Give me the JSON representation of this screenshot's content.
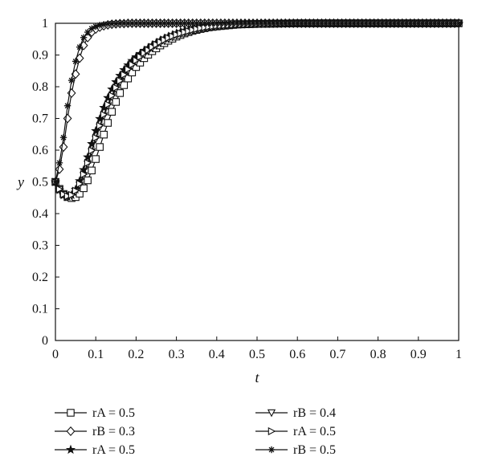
{
  "chart_data": {
    "type": "line",
    "xlabel": "t",
    "ylabel": "y",
    "xlim": [
      0,
      1
    ],
    "ylim": [
      0,
      1
    ],
    "x_ticks": [
      "0",
      "0.1",
      "0.2",
      "0.3",
      "0.4",
      "0.5",
      "0.6",
      "0.7",
      "0.8",
      "0.9",
      "1"
    ],
    "y_ticks": [
      "0",
      "0.1",
      "0.2",
      "0.3",
      "0.4",
      "0.5",
      "0.6",
      "0.7",
      "0.8",
      "0.9",
      "1"
    ],
    "grid": false,
    "legend_position": "bottom",
    "line_color": "#111111",
    "x": [
      0,
      0.01,
      0.02,
      0.03,
      0.04,
      0.05,
      0.06,
      0.07,
      0.08,
      0.09,
      0.1,
      0.11,
      0.12,
      0.13,
      0.14,
      0.15,
      0.16,
      0.17,
      0.18,
      0.19,
      0.2,
      0.22,
      0.24,
      0.26,
      0.28,
      0.3,
      0.32,
      0.34,
      0.36,
      0.38,
      0.4,
      0.45,
      0.5,
      0.55,
      0.6,
      0.65,
      0.7,
      0.75,
      0.8,
      0.85,
      0.9,
      0.95,
      1.0
    ],
    "series": [
      {
        "name": "rA = 0.5",
        "marker": "square",
        "values": [
          0.5,
          0.478,
          0.462,
          0.452,
          0.449,
          0.452,
          0.463,
          0.48,
          0.505,
          0.536,
          0.572,
          0.61,
          0.649,
          0.686,
          0.721,
          0.752,
          0.78,
          0.805,
          0.826,
          0.845,
          0.862,
          0.89,
          0.912,
          0.93,
          0.945,
          0.958,
          0.968,
          0.976,
          0.982,
          0.987,
          0.99,
          0.996,
          0.998,
          0.999,
          1.0,
          1.0,
          1.0,
          1.0,
          1.0,
          1.0,
          1.0,
          1.0,
          1.0
        ]
      },
      {
        "name": "rB = 0.3",
        "marker": "diamond",
        "values": [
          0.5,
          0.54,
          0.61,
          0.7,
          0.78,
          0.84,
          0.89,
          0.93,
          0.955,
          0.972,
          0.982,
          0.988,
          0.992,
          0.995,
          0.997,
          0.998,
          0.999,
          0.999,
          1.0,
          1.0,
          1.0,
          1.0,
          1.0,
          1.0,
          1.0,
          1.0,
          1.0,
          1.0,
          1.0,
          1.0,
          1.0,
          1.0,
          1.0,
          1.0,
          1.0,
          1.0,
          1.0,
          1.0,
          1.0,
          1.0,
          1.0,
          1.0,
          1.0
        ]
      },
      {
        "name": "rA = 0.5",
        "marker": "star",
        "values": [
          0.5,
          0.474,
          0.458,
          0.453,
          0.459,
          0.476,
          0.503,
          0.538,
          0.578,
          0.62,
          0.661,
          0.699,
          0.734,
          0.765,
          0.792,
          0.815,
          0.835,
          0.853,
          0.868,
          0.882,
          0.894,
          0.914,
          0.931,
          0.946,
          0.958,
          0.968,
          0.976,
          0.982,
          0.987,
          0.991,
          0.993,
          0.997,
          0.999,
          1.0,
          1.0,
          1.0,
          1.0,
          1.0,
          1.0,
          1.0,
          1.0,
          1.0,
          1.0
        ]
      },
      {
        "name": "rB = 0.4",
        "marker": "triangle-down",
        "values": [
          0.5,
          0.476,
          0.46,
          0.454,
          0.457,
          0.469,
          0.49,
          0.52,
          0.556,
          0.595,
          0.635,
          0.673,
          0.708,
          0.74,
          0.768,
          0.793,
          0.815,
          0.834,
          0.851,
          0.866,
          0.879,
          0.902,
          0.922,
          0.938,
          0.951,
          0.962,
          0.971,
          0.978,
          0.984,
          0.988,
          0.991,
          0.996,
          0.998,
          0.999,
          1.0,
          1.0,
          1.0,
          1.0,
          1.0,
          1.0,
          1.0,
          1.0,
          1.0
        ]
      },
      {
        "name": "rA = 0.5",
        "marker": "triangle-right",
        "values": [
          0.5,
          0.477,
          0.461,
          0.455,
          0.459,
          0.472,
          0.494,
          0.524,
          0.56,
          0.599,
          0.639,
          0.677,
          0.712,
          0.744,
          0.772,
          0.797,
          0.819,
          0.838,
          0.855,
          0.87,
          0.883,
          0.906,
          0.925,
          0.941,
          0.954,
          0.964,
          0.972,
          0.979,
          0.985,
          0.989,
          0.992,
          0.996,
          0.998,
          0.999,
          1.0,
          1.0,
          1.0,
          1.0,
          1.0,
          1.0,
          1.0,
          1.0,
          1.0
        ]
      },
      {
        "name": "rB = 0.5",
        "marker": "asterisk",
        "values": [
          0.5,
          0.56,
          0.64,
          0.74,
          0.82,
          0.88,
          0.925,
          0.955,
          0.972,
          0.983,
          0.99,
          0.994,
          0.996,
          0.998,
          0.999,
          0.999,
          1.0,
          1.0,
          1.0,
          1.0,
          1.0,
          1.0,
          1.0,
          1.0,
          1.0,
          1.0,
          1.0,
          1.0,
          1.0,
          1.0,
          1.0,
          1.0,
          1.0,
          1.0,
          1.0,
          1.0,
          1.0,
          1.0,
          1.0,
          1.0,
          1.0,
          1.0,
          1.0
        ]
      }
    ]
  }
}
